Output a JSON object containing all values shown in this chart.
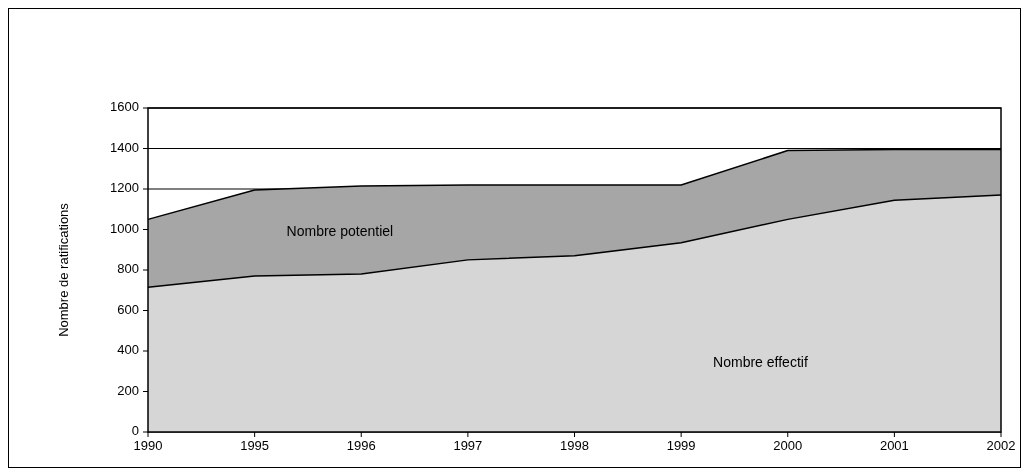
{
  "chart_data": {
    "type": "area",
    "ylabel": "Nombre de ratifications",
    "categories": [
      "1990",
      "1995",
      "1996",
      "1997",
      "1998",
      "1999",
      "2000",
      "2001",
      "2002"
    ],
    "series": [
      {
        "name": "Nombre potentiel",
        "color": "#a6a6a6",
        "values": [
          1050,
          1195,
          1215,
          1220,
          1220,
          1220,
          1390,
          1395,
          1395
        ]
      },
      {
        "name": "Nombre effectif",
        "color": "#d6d6d6",
        "values": [
          715,
          770,
          780,
          850,
          870,
          935,
          1050,
          1145,
          1170
        ]
      }
    ],
    "ylim": [
      0,
      1600
    ],
    "yticks": [
      0,
      200,
      400,
      600,
      800,
      1000,
      1200,
      1400,
      1600
    ],
    "grid": "y"
  }
}
